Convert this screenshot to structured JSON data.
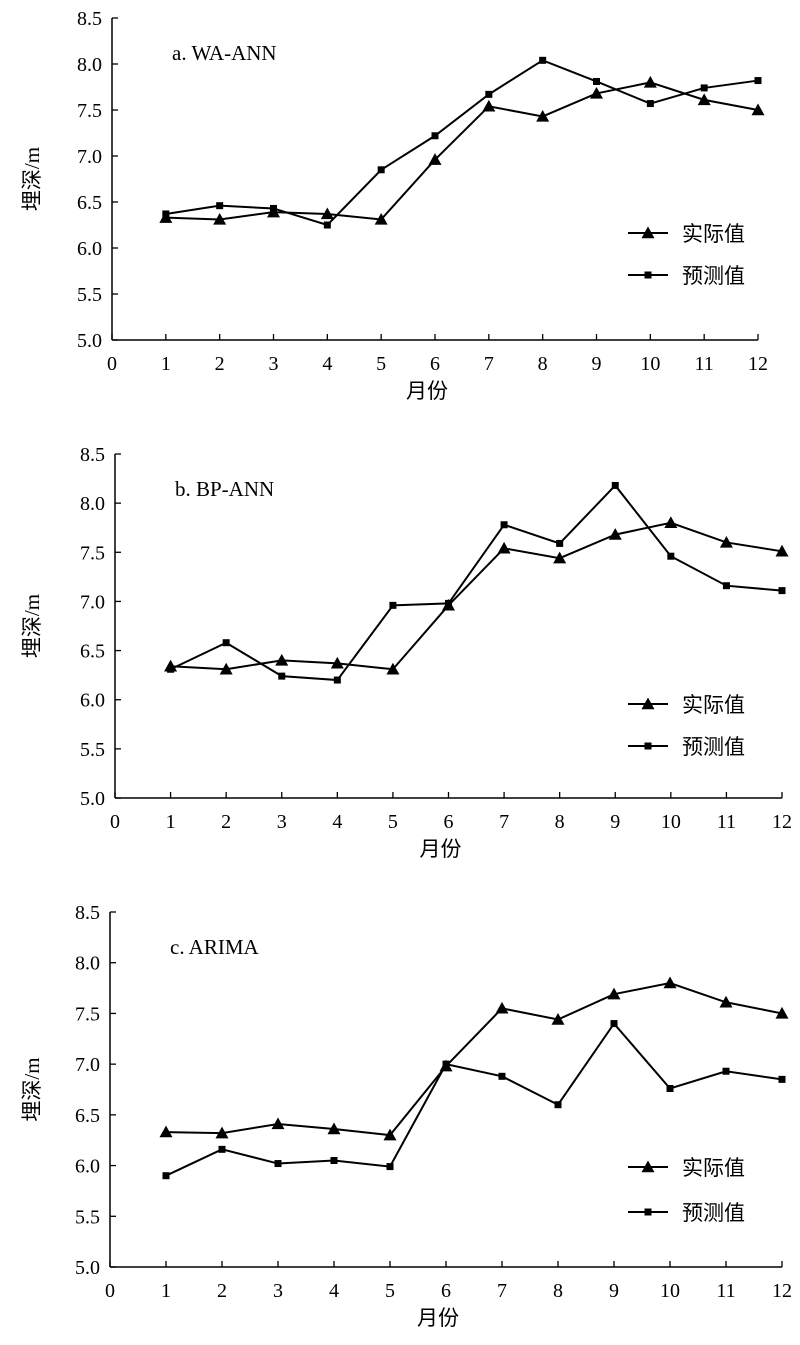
{
  "figure": {
    "legend": {
      "actual": "实际值",
      "predicted": "预测值"
    }
  },
  "chart_data": [
    {
      "type": "line",
      "title": "a. WA-ANN",
      "xlabel": "月份",
      "ylabel": "埋深/m",
      "xlim": [
        0,
        12
      ],
      "ylim": [
        5.0,
        8.5
      ],
      "x_ticks": [
        0,
        1,
        2,
        3,
        4,
        5,
        6,
        7,
        8,
        9,
        10,
        11,
        12
      ],
      "y_ticks": [
        "5.0",
        "5.5",
        "6.0",
        "6.5",
        "7.0",
        "7.5",
        "8.0",
        "8.5"
      ],
      "grid": false,
      "legend_position": "right",
      "x": [
        1,
        2,
        3,
        4,
        5,
        6,
        7,
        8,
        9,
        10,
        11,
        12
      ],
      "series": [
        {
          "name": "实际值",
          "marker": "triangle",
          "values": [
            6.33,
            6.31,
            6.39,
            6.37,
            6.31,
            6.96,
            7.54,
            7.43,
            7.68,
            7.8,
            7.61,
            7.5
          ]
        },
        {
          "name": "预测值",
          "marker": "square",
          "values": [
            6.37,
            6.46,
            6.43,
            6.25,
            6.85,
            7.22,
            7.67,
            8.04,
            7.81,
            7.57,
            7.74,
            7.82
          ]
        }
      ]
    },
    {
      "type": "line",
      "title": "b. BP-ANN",
      "xlabel": "月份",
      "ylabel": "埋深/m",
      "xlim": [
        0,
        12
      ],
      "ylim": [
        5.0,
        8.5
      ],
      "x_ticks": [
        0,
        1,
        2,
        3,
        4,
        5,
        6,
        7,
        8,
        9,
        10,
        11,
        12
      ],
      "y_ticks": [
        "5.0",
        "5.5",
        "6.0",
        "6.5",
        "7.0",
        "7.5",
        "8.0",
        "8.5"
      ],
      "grid": false,
      "legend_position": "right",
      "x": [
        1,
        2,
        3,
        4,
        5,
        6,
        7,
        8,
        9,
        10,
        11,
        12
      ],
      "series": [
        {
          "name": "实际值",
          "marker": "triangle",
          "values": [
            6.34,
            6.31,
            6.4,
            6.37,
            6.31,
            6.96,
            7.54,
            7.44,
            7.68,
            7.8,
            7.6,
            7.51
          ]
        },
        {
          "name": "预测值",
          "marker": "square",
          "values": [
            6.31,
            6.58,
            6.24,
            6.2,
            6.96,
            6.98,
            7.78,
            7.59,
            8.18,
            7.46,
            7.16,
            7.11
          ]
        }
      ]
    },
    {
      "type": "line",
      "title": "c. ARIMA",
      "xlabel": "月份",
      "ylabel": "埋深/m",
      "xlim": [
        0,
        12
      ],
      "ylim": [
        5.0,
        8.5
      ],
      "x_ticks": [
        0,
        1,
        2,
        3,
        4,
        5,
        6,
        7,
        8,
        9,
        10,
        11,
        12
      ],
      "y_ticks": [
        "5.0",
        "5.5",
        "6.0",
        "6.5",
        "7.0",
        "7.5",
        "8.0",
        "8.5"
      ],
      "grid": false,
      "legend_position": "right",
      "x": [
        1,
        2,
        3,
        4,
        5,
        6,
        7,
        8,
        9,
        10,
        11,
        12
      ],
      "series": [
        {
          "name": "实际值",
          "marker": "triangle",
          "values": [
            6.33,
            6.32,
            6.41,
            6.36,
            6.3,
            6.98,
            7.55,
            7.44,
            7.69,
            7.8,
            7.61,
            7.5
          ]
        },
        {
          "name": "预测值",
          "marker": "square",
          "values": [
            5.9,
            6.16,
            6.02,
            6.05,
            5.99,
            7.0,
            6.88,
            6.6,
            7.4,
            6.76,
            6.93,
            6.85
          ]
        }
      ]
    }
  ]
}
